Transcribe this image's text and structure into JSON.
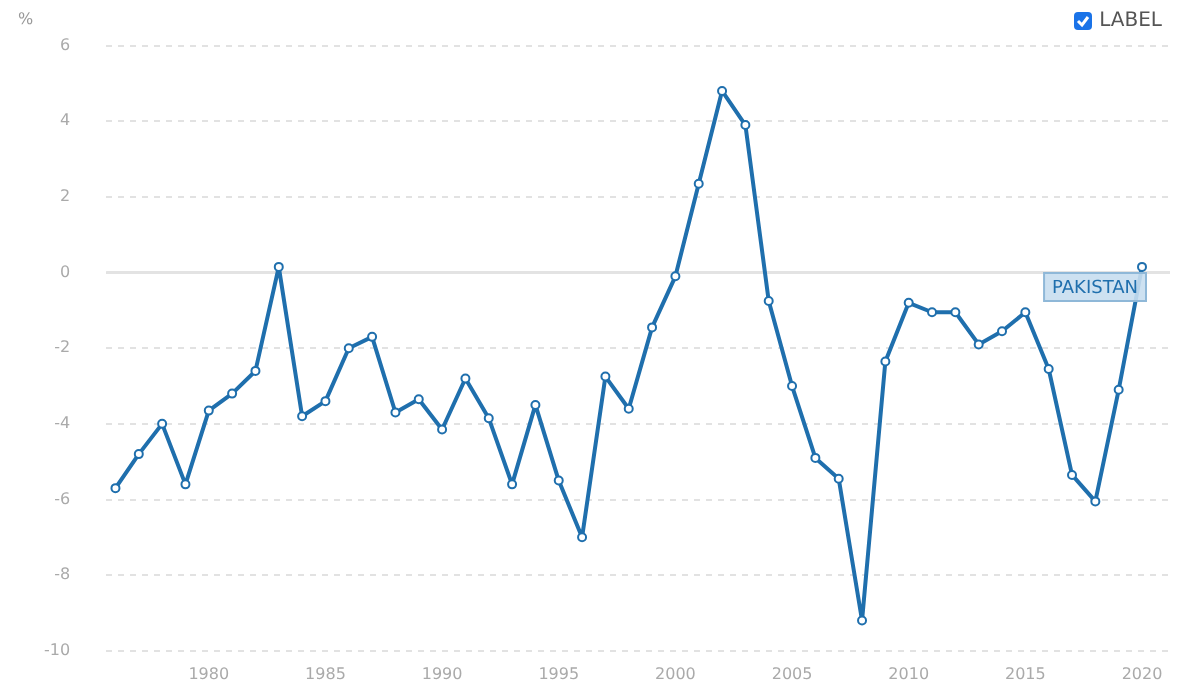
{
  "chart_data": {
    "type": "line",
    "ylabel": "%",
    "x": [
      1976,
      1977,
      1978,
      1979,
      1980,
      1981,
      1982,
      1983,
      1984,
      1985,
      1986,
      1987,
      1988,
      1989,
      1990,
      1991,
      1992,
      1993,
      1994,
      1995,
      1996,
      1997,
      1998,
      1999,
      2000,
      2001,
      2002,
      2003,
      2004,
      2005,
      2006,
      2007,
      2008,
      2009,
      2010,
      2011,
      2012,
      2013,
      2014,
      2015,
      2016,
      2017,
      2018,
      2019,
      2020
    ],
    "series": [
      {
        "name": "PAKISTAN",
        "color": "#1f6fad",
        "values": [
          -5.7,
          -4.8,
          -4.0,
          -5.6,
          -3.65,
          -3.2,
          -2.6,
          0.15,
          -3.8,
          -3.4,
          -2.0,
          -1.7,
          -3.7,
          -3.35,
          -4.15,
          -2.8,
          -3.85,
          -5.6,
          -3.5,
          -5.5,
          -7.0,
          -2.75,
          -3.6,
          -1.45,
          -0.1,
          2.35,
          4.8,
          3.9,
          -0.75,
          -3.0,
          -4.9,
          -5.45,
          -9.2,
          -2.35,
          -0.8,
          -1.05,
          -1.05,
          -1.9,
          -1.55,
          -1.05,
          -2.55,
          -5.35,
          -6.05,
          -3.1,
          0.15
        ]
      }
    ],
    "xlim": [
      1975.6,
      2021.2
    ],
    "xticks": [
      1980,
      1985,
      1990,
      1995,
      2000,
      2005,
      2010,
      2015,
      2020
    ],
    "ylim": [
      -10,
      6
    ],
    "yticks": [
      -10,
      -8,
      -6,
      -4,
      -2,
      0,
      2,
      4,
      6
    ],
    "ref_lines": [
      {
        "axis": "y",
        "value": 0,
        "color": "#e3e3e3"
      }
    ],
    "annotations": [
      "LABEL"
    ],
    "grid": "y",
    "legend": false,
    "marker": "circle",
    "line_style": "solid"
  }
}
